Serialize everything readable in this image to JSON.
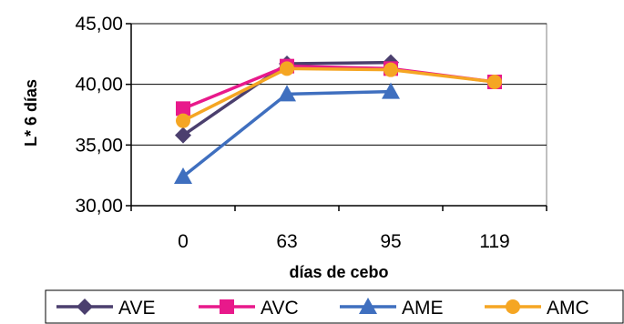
{
  "chart_data": {
    "type": "line",
    "title": "",
    "xlabel": "días de cebo",
    "ylabel": "L* 6 días",
    "categories": [
      "0",
      "63",
      "95",
      "119"
    ],
    "ylim": [
      30,
      45
    ],
    "yticks": [
      "30,00",
      "35,00",
      "40,00",
      "45,00"
    ],
    "ytick_values": [
      30,
      35,
      40,
      45
    ],
    "grid": "horizontal",
    "legend_position": "bottom",
    "series": [
      {
        "name": "AVE",
        "color": "#4b3f6e",
        "marker": "diamond",
        "values": [
          35.8,
          41.7,
          41.8,
          null
        ]
      },
      {
        "name": "AVC",
        "color": "#e8198b",
        "marker": "square",
        "values": [
          38.0,
          41.5,
          41.3,
          40.2
        ]
      },
      {
        "name": "AME",
        "color": "#3f6fbf",
        "marker": "triangle",
        "values": [
          32.4,
          39.2,
          39.4,
          null
        ]
      },
      {
        "name": "AMC",
        "color": "#f5a623",
        "marker": "circle",
        "values": [
          37.0,
          41.3,
          41.2,
          40.2
        ]
      }
    ]
  }
}
